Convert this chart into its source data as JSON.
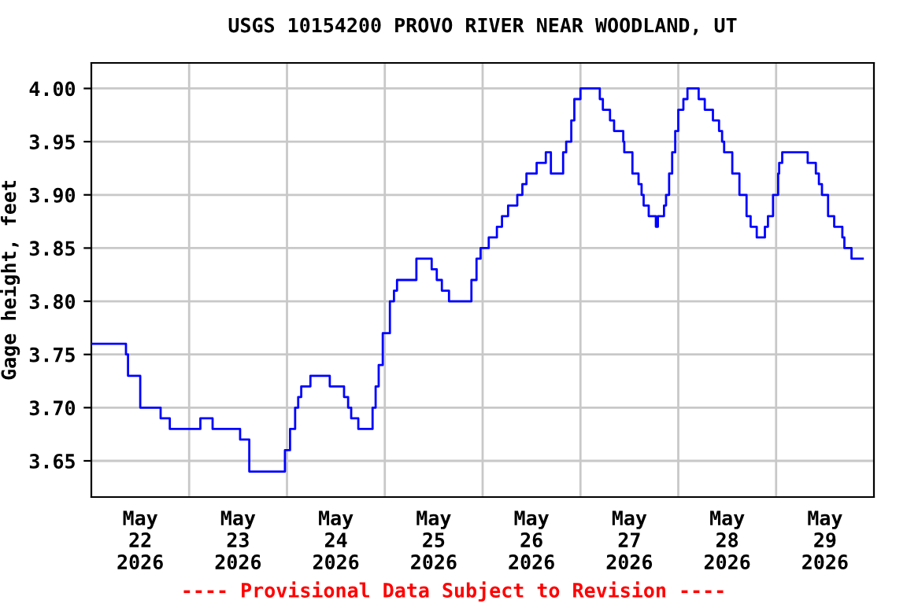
{
  "chart_data": {
    "type": "step",
    "title": "USGS 10154200 PROVO RIVER NEAR WOODLAND, UT",
    "ylabel": "Gage height, feet",
    "annotations": [
      "---- Provisional Data Subject to Revision ----"
    ],
    "x": [
      "2026-05-22T00:00",
      "2026-05-22T08:00",
      "2026-05-22T08:30",
      "2026-05-22T09:00",
      "2026-05-22T11:30",
      "2026-05-22T12:00",
      "2026-05-22T16:45",
      "2026-05-22T17:00",
      "2026-05-22T18:15",
      "2026-05-22T19:15",
      "2026-05-23T02:15",
      "2026-05-23T02:45",
      "2026-05-23T05:30",
      "2026-05-23T05:45",
      "2026-05-23T12:00",
      "2026-05-23T12:30",
      "2026-05-23T14:00",
      "2026-05-23T14:45",
      "2026-05-23T22:45",
      "2026-05-23T23:30",
      "2026-05-24T00:45",
      "2026-05-24T02:00",
      "2026-05-24T02:45",
      "2026-05-24T03:30",
      "2026-05-24T05:45",
      "2026-05-24T10:00",
      "2026-05-24T10:30",
      "2026-05-24T13:15",
      "2026-05-24T14:00",
      "2026-05-24T15:00",
      "2026-05-24T15:45",
      "2026-05-24T17:30",
      "2026-05-24T20:30",
      "2026-05-24T21:00",
      "2026-05-24T21:45",
      "2026-05-24T22:30",
      "2026-05-24T23:30",
      "2026-05-25T01:15",
      "2026-05-25T02:15",
      "2026-05-25T03:00",
      "2026-05-25T07:00",
      "2026-05-25T07:45",
      "2026-05-25T10:45",
      "2026-05-25T11:30",
      "2026-05-25T12:45",
      "2026-05-25T14:00",
      "2026-05-25T15:45",
      "2026-05-25T20:30",
      "2026-05-25T21:15",
      "2026-05-25T22:30",
      "2026-05-25T23:30",
      "2026-05-26T01:30",
      "2026-05-26T03:30",
      "2026-05-26T04:45",
      "2026-05-26T06:15",
      "2026-05-26T08:30",
      "2026-05-26T09:45",
      "2026-05-26T10:45",
      "2026-05-26T13:15",
      "2026-05-26T15:30",
      "2026-05-26T16:45",
      "2026-05-26T19:00",
      "2026-05-26T19:45",
      "2026-05-26T20:30",
      "2026-05-26T21:45",
      "2026-05-26T22:30",
      "2026-05-27T00:00",
      "2026-05-27T04:15",
      "2026-05-27T04:45",
      "2026-05-27T05:30",
      "2026-05-27T07:15",
      "2026-05-27T08:15",
      "2026-05-27T10:00",
      "2026-05-27T10:30",
      "2026-05-27T10:45",
      "2026-05-27T12:30",
      "2026-05-27T12:45",
      "2026-05-27T14:00",
      "2026-05-27T14:15",
      "2026-05-27T15:00",
      "2026-05-27T15:30",
      "2026-05-27T16:45",
      "2026-05-27T17:45",
      "2026-05-27T18:30",
      "2026-05-27T19:00",
      "2026-05-27T20:30",
      "2026-05-27T21:00",
      "2026-05-27T21:45",
      "2026-05-27T22:30",
      "2026-05-27T23:15",
      "2026-05-28T00:00",
      "2026-05-28T01:15",
      "2026-05-28T02:15",
      "2026-05-28T04:45",
      "2026-05-28T05:00",
      "2026-05-28T06:15",
      "2026-05-28T06:30",
      "2026-05-28T08:00",
      "2026-05-28T08:30",
      "2026-05-28T09:45",
      "2026-05-28T10:00",
      "2026-05-28T10:45",
      "2026-05-28T11:15",
      "2026-05-28T12:00",
      "2026-05-28T13:15",
      "2026-05-28T15:00",
      "2026-05-28T16:45",
      "2026-05-28T17:45",
      "2026-05-28T19:15",
      "2026-05-28T21:00",
      "2026-05-28T21:15",
      "2026-05-28T22:00",
      "2026-05-28T23:15",
      "2026-05-29T00:30",
      "2026-05-29T00:45",
      "2026-05-29T01:30",
      "2026-05-29T07:15",
      "2026-05-29T07:45",
      "2026-05-29T09:15",
      "2026-05-29T09:45",
      "2026-05-29T10:30",
      "2026-05-29T11:15",
      "2026-05-29T12:45",
      "2026-05-29T14:15",
      "2026-05-29T15:30",
      "2026-05-29T16:15",
      "2026-05-29T16:45",
      "2026-05-29T18:15",
      "2026-05-29T18:30",
      "2026-05-29T21:15"
    ],
    "series": [
      {
        "color": "#0000ff",
        "values": [
          3.76,
          3.76,
          3.75,
          3.73,
          3.73,
          3.7,
          3.7,
          3.69,
          3.69,
          3.68,
          3.68,
          3.69,
          3.69,
          3.68,
          3.68,
          3.67,
          3.67,
          3.64,
          3.64,
          3.66,
          3.68,
          3.7,
          3.71,
          3.72,
          3.73,
          3.73,
          3.72,
          3.72,
          3.71,
          3.7,
          3.69,
          3.68,
          3.68,
          3.7,
          3.72,
          3.74,
          3.77,
          3.8,
          3.81,
          3.82,
          3.82,
          3.84,
          3.84,
          3.83,
          3.82,
          3.81,
          3.8,
          3.8,
          3.82,
          3.84,
          3.85,
          3.86,
          3.87,
          3.88,
          3.89,
          3.9,
          3.91,
          3.92,
          3.93,
          3.94,
          3.92,
          3.92,
          3.94,
          3.95,
          3.97,
          3.99,
          4.0,
          4.0,
          3.99,
          3.98,
          3.97,
          3.96,
          3.96,
          3.95,
          3.94,
          3.94,
          3.92,
          3.92,
          3.91,
          3.9,
          3.89,
          3.88,
          3.88,
          3.87,
          3.88,
          3.89,
          3.9,
          3.92,
          3.94,
          3.96,
          3.98,
          3.99,
          4.0,
          4.0,
          3.99,
          3.99,
          3.98,
          3.98,
          3.97,
          3.97,
          3.96,
          3.95,
          3.94,
          3.94,
          3.92,
          3.9,
          3.88,
          3.87,
          3.86,
          3.86,
          3.87,
          3.88,
          3.9,
          3.92,
          3.93,
          3.94,
          3.94,
          3.93,
          3.93,
          3.92,
          3.91,
          3.9,
          3.88,
          3.87,
          3.87,
          3.86,
          3.85,
          3.85,
          3.84,
          3.84
        ]
      }
    ],
    "xlim": [
      "2026-05-22T00:00",
      "2026-05-30T00:00"
    ],
    "xticks": [
      {
        "value": "2026-05-22T12:00",
        "label": "May\n22\n2026"
      },
      {
        "value": "2026-05-23T00:00",
        "label": null
      },
      {
        "value": "2026-05-23T12:00",
        "label": "May\n23\n2026"
      },
      {
        "value": "2026-05-24T00:00",
        "label": null
      },
      {
        "value": "2026-05-24T12:00",
        "label": "May\n24\n2026"
      },
      {
        "value": "2026-05-25T00:00",
        "label": null
      },
      {
        "value": "2026-05-25T12:00",
        "label": "May\n25\n2026"
      },
      {
        "value": "2026-05-26T00:00",
        "label": null
      },
      {
        "value": "2026-05-26T12:00",
        "label": "May\n26\n2026"
      },
      {
        "value": "2026-05-27T00:00",
        "label": null
      },
      {
        "value": "2026-05-27T12:00",
        "label": "May\n27\n2026"
      },
      {
        "value": "2026-05-28T00:00",
        "label": null
      },
      {
        "value": "2026-05-28T12:00",
        "label": "May\n28\n2026"
      },
      {
        "value": "2026-05-29T00:00",
        "label": null
      },
      {
        "value": "2026-05-29T12:00",
        "label": "May\n29\n2026"
      }
    ],
    "ylim": [
      3.616,
      4.024
    ],
    "yticks": [
      {
        "value": 3.65,
        "label": "3.65"
      },
      {
        "value": 3.7,
        "label": "3.70"
      },
      {
        "value": 3.75,
        "label": "3.75"
      },
      {
        "value": 3.8,
        "label": "3.80"
      },
      {
        "value": 3.85,
        "label": "3.85"
      },
      {
        "value": 3.9,
        "label": "3.90"
      },
      {
        "value": 3.95,
        "label": "3.95"
      },
      {
        "value": 4.0,
        "label": "4.00"
      }
    ],
    "grid": true,
    "legend": false
  }
}
